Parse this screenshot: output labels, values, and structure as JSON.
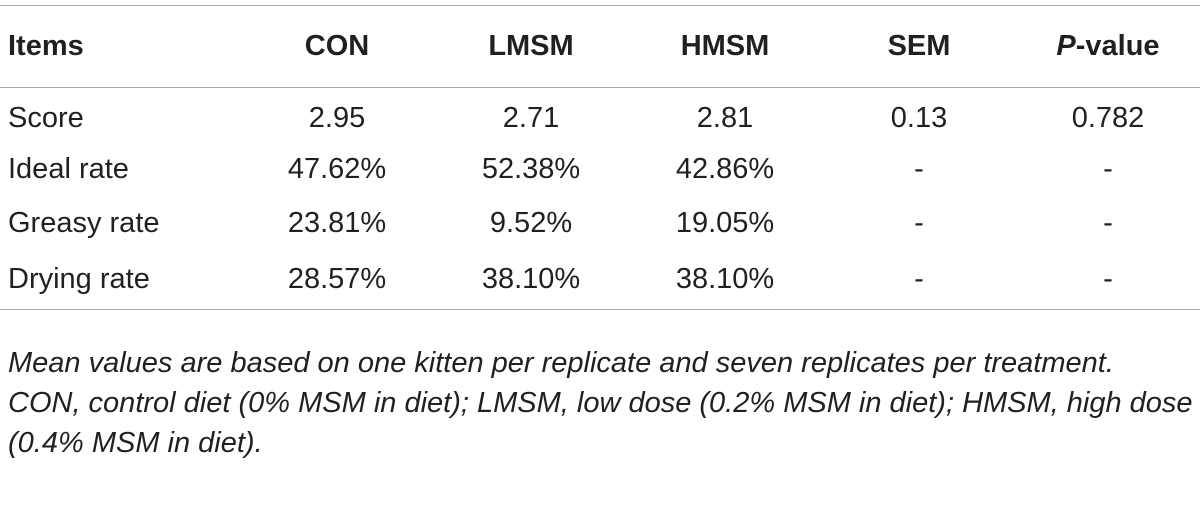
{
  "table": {
    "headers": [
      "Items",
      "CON",
      "LMSM",
      "HMSM",
      "SEM"
    ],
    "pvalue_header": {
      "italic_part": "P",
      "rest": "-value"
    },
    "rows": [
      [
        "Score",
        "2.95",
        "2.71",
        "2.81",
        "0.13",
        "0.782"
      ],
      [
        "Ideal rate",
        "47.62%",
        "52.38%",
        "42.86%",
        "-",
        "-"
      ],
      [
        "Greasy rate",
        "23.81%",
        "9.52%",
        "19.05%",
        "-",
        "-"
      ],
      [
        "Drying rate",
        "28.57%",
        "38.10%",
        "38.10%",
        "-",
        "-"
      ]
    ]
  },
  "notes": [
    "Mean values are based on one kitten per replicate and seven replicates per treatment.",
    "CON, control diet (0% MSM in diet); LMSM, low dose (0.2% MSM in diet); HMSM, high dose (0.4% MSM in diet)."
  ]
}
